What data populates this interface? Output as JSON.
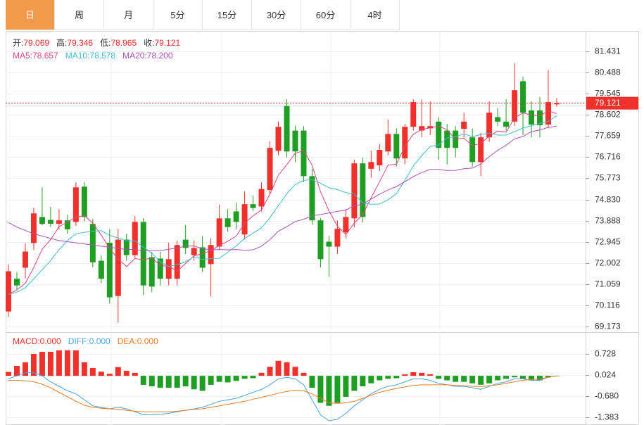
{
  "tabs": [
    "日",
    "周",
    "月",
    "5分",
    "15分",
    "30分",
    "60分",
    "4时"
  ],
  "active_tab": 0,
  "chart_data": {
    "type": "candlestick",
    "up_color": "#f0302a",
    "down_color": "#1e9e22",
    "ohlc_legend": [
      {
        "label": "开:",
        "value": "79.069"
      },
      {
        "label": "高:",
        "value": "79.346"
      },
      {
        "label": "低:",
        "value": "78.965"
      },
      {
        "label": "收:",
        "value": "79.121"
      }
    ],
    "last_price": 79.121,
    "ylim": [
      68.92,
      82.34
    ],
    "yticks": [
      81.431,
      80.488,
      79.545,
      78.602,
      77.659,
      76.716,
      75.773,
      {
        "value": 74.83,
        "label": "74.830"
      },
      73.888,
      72.945,
      72.002,
      71.059,
      70.116,
      69.173
    ],
    "open": [
      69.84,
      71.3,
      71.79,
      72.89,
      74.05,
      73.92,
      73.75,
      73.9,
      73.83,
      75.4,
      73.74,
      72.1,
      72.9,
      70.53,
      73.04,
      72.35,
      73.83,
      72.26,
      72.2,
      71.3,
      71.3,
      73.04,
      72.35,
      72.7,
      71.95,
      72.73,
      73.99,
      74.3,
      73.27,
      74.62,
      74.52,
      75.25,
      77.0,
      79.0,
      77.9,
      77.9,
      75.87,
      73.9,
      72.95,
      72.73,
      73.36,
      73.99,
      76.44,
      76.2,
      76.35,
      76.97,
      77.75,
      76.66,
      78.07,
      77.9,
      78.0,
      78.3,
      77.9,
      77.9,
      77.98,
      77.6,
      76.5,
      77.6,
      78.5,
      78.3,
      78.3,
      80.1,
      78.8,
      78.8,
      78.17,
      79.069
    ],
    "high": [
      71.94,
      71.6,
      72.89,
      74.46,
      75.37,
      74.5,
      74.4,
      74.15,
      75.6,
      75.6,
      73.97,
      72.35,
      73.5,
      73.52,
      73.3,
      74.1,
      74.0,
      72.5,
      72.5,
      72.9,
      73.0,
      73.7,
      73.0,
      73.2,
      73.1,
      74.6,
      74.4,
      74.7,
      75.2,
      75.0,
      75.6,
      77.44,
      78.3,
      79.3,
      78.1,
      78.1,
      76.2,
      74.0,
      73.2,
      73.9,
      74.4,
      76.6,
      76.7,
      77.0,
      77.3,
      78.4,
      78.0,
      78.2,
      79.3,
      79.3,
      79.2,
      78.5,
      78.2,
      78.1,
      78.7,
      78.0,
      77.8,
      79.2,
      78.9,
      79.3,
      80.9,
      80.3,
      79.2,
      79.4,
      80.6,
      79.346
    ],
    "low": [
      69.59,
      70.8,
      71.32,
      72.58,
      73.68,
      73.6,
      73.5,
      73.3,
      73.65,
      73.85,
      71.8,
      71.1,
      70.2,
      69.34,
      72.1,
      72.2,
      70.57,
      70.7,
      71.0,
      71.0,
      71.0,
      72.4,
      72.1,
      71.6,
      70.5,
      72.58,
      73.4,
      73.5,
      73.05,
      74.3,
      74.3,
      75.09,
      76.8,
      76.7,
      76.5,
      75.6,
      73.7,
      71.8,
      71.4,
      72.4,
      73.1,
      73.6,
      73.8,
      75.8,
      76.1,
      76.8,
      76.3,
      76.4,
      77.9,
      77.6,
      77.7,
      76.6,
      76.4,
      76.7,
      77.6,
      76.3,
      75.87,
      77.4,
      78.1,
      77.9,
      78.1,
      77.7,
      77.6,
      77.6,
      78.0,
      78.965
    ],
    "close": [
      71.63,
      71.0,
      72.51,
      74.21,
      73.74,
      73.75,
      73.9,
      73.5,
      75.37,
      74.05,
      72.03,
      71.3,
      70.47,
      73.04,
      72.35,
      73.83,
      71.0,
      70.95,
      71.3,
      72.17,
      72.8,
      72.67,
      72.67,
      71.79,
      72.8,
      73.99,
      73.6,
      73.83,
      74.62,
      74.45,
      75.3,
      77.13,
      78.07,
      76.97,
      76.97,
      75.87,
      73.9,
      72.17,
      72.73,
      73.52,
      74.05,
      76.44,
      74.05,
      76.5,
      77.04,
      77.75,
      76.66,
      78.07,
      79.17,
      78.1,
      78.1,
      77.13,
      77.13,
      77.13,
      78.3,
      76.5,
      77.6,
      78.7,
      78.3,
      78.07,
      79.7,
      78.7,
      78.17,
      78.14,
      79.17,
      79.121
    ],
    "series": [
      {
        "name": "MA5:",
        "value_label": "78.657",
        "color": "#e0457b",
        "values": [
          70.6,
          70.8,
          71.1,
          71.8,
          72.62,
          73.04,
          73.62,
          73.82,
          74.05,
          74.11,
          73.77,
          73.25,
          72.64,
          72.18,
          71.84,
          72.2,
          72.14,
          72.23,
          71.89,
          71.85,
          71.64,
          71.98,
          72.32,
          72.42,
          72.55,
          72.78,
          72.97,
          73.2,
          73.77,
          74.1,
          74.36,
          75.07,
          75.91,
          76.38,
          76.89,
          77.0,
          76.36,
          75.18,
          74.33,
          73.64,
          73.27,
          73.78,
          74.16,
          74.91,
          75.62,
          76.36,
          76.4,
          77.2,
          77.74,
          77.95,
          78.02,
          78.11,
          77.93,
          77.52,
          77.56,
          77.24,
          77.33,
          77.65,
          77.88,
          77.83,
          78.47,
          78.69,
          78.59,
          78.56,
          78.78,
          78.66
        ]
      },
      {
        "name": "MA10:",
        "value_label": "78.578",
        "color": "#3cbfd6",
        "values": [
          70.6,
          70.7,
          70.9,
          71.3,
          71.7,
          72.1,
          72.6,
          73.0,
          73.3,
          73.37,
          73.41,
          73.44,
          73.23,
          73.12,
          72.98,
          72.99,
          72.7,
          72.44,
          72.04,
          71.85,
          71.92,
          72.06,
          72.28,
          72.16,
          72.2,
          72.21,
          72.48,
          72.76,
          73.1,
          73.33,
          73.57,
          74.02,
          74.56,
          75.08,
          75.5,
          75.68,
          75.72,
          75.55,
          75.36,
          75.27,
          75.14,
          75.07,
          74.67,
          74.62,
          74.63,
          74.82,
          75.09,
          75.68,
          76.33,
          76.79,
          77.19,
          77.26,
          77.57,
          77.63,
          77.76,
          77.63,
          77.72,
          77.79,
          77.7,
          77.7,
          77.86,
          78.01,
          78.12,
          78.22,
          78.31,
          78.56
        ]
      },
      {
        "name": "MA20:",
        "value_label": "78.200",
        "color": "#b04fc0",
        "values": [
          73.8,
          73.6,
          73.45,
          73.3,
          73.2,
          73.1,
          73.0,
          72.95,
          72.9,
          72.85,
          72.8,
          72.75,
          72.7,
          72.65,
          72.6,
          72.6,
          72.55,
          72.55,
          72.55,
          72.61,
          72.67,
          72.75,
          72.76,
          72.64,
          72.59,
          72.6,
          72.59,
          72.6,
          72.57,
          72.59,
          72.75,
          73.04,
          73.42,
          73.62,
          73.85,
          73.95,
          74.1,
          74.16,
          74.23,
          74.3,
          74.36,
          74.55,
          74.62,
          74.85,
          75.07,
          75.25,
          75.41,
          75.62,
          75.85,
          76.03,
          76.17,
          76.17,
          76.12,
          76.13,
          76.2,
          76.23,
          76.41,
          76.74,
          77.02,
          77.25,
          77.53,
          77.64,
          77.85,
          77.93,
          78.04,
          78.1
        ]
      }
    ],
    "macd": {
      "ylim": [
        -1.64,
        1.41
      ],
      "yticks": [
        0.728,
        0.024,
        {
          "value": -0.68,
          "label": "-0.680"
        },
        -1.383
      ],
      "series": [
        {
          "name": "MACD:",
          "value_label": "0.000",
          "type": "bar",
          "color": "#f0302a",
          "negative_color": "#1e9e22",
          "values": [
            0.13,
            0.33,
            0.45,
            0.73,
            0.8,
            0.8,
            0.85,
            0.85,
            0.85,
            0.45,
            0.26,
            0.14,
            0.07,
            0.29,
            0.17,
            0.1,
            -0.3,
            -0.35,
            -0.4,
            -0.4,
            -0.4,
            -0.35,
            -0.45,
            -0.5,
            -0.3,
            -0.2,
            -0.22,
            -0.17,
            -0.1,
            -0.08,
            0.1,
            0.3,
            0.5,
            0.45,
            0.3,
            0.1,
            -0.4,
            -0.9,
            -1.0,
            -0.9,
            -0.7,
            -0.5,
            -0.35,
            -0.25,
            -0.15,
            -0.1,
            -0.08,
            0.05,
            0.12,
            0.1,
            0.05,
            -0.1,
            -0.15,
            -0.2,
            -0.2,
            -0.25,
            -0.3,
            -0.25,
            -0.15,
            -0.1,
            -0.05,
            -0.1,
            -0.15,
            -0.15,
            -0.05,
            0.0
          ]
        },
        {
          "name": "DIFF:",
          "value_label": "0.000",
          "type": "line",
          "color": "#4aa3e8",
          "values": [
            -0.1,
            0.0,
            0.1,
            0.1,
            0.0,
            -0.2,
            -0.35,
            -0.5,
            -0.6,
            -0.8,
            -1.0,
            -1.05,
            -1.1,
            -1.05,
            -1.1,
            -1.2,
            -1.3,
            -1.3,
            -1.28,
            -1.25,
            -1.2,
            -1.15,
            -1.1,
            -1.05,
            -0.95,
            -0.85,
            -0.8,
            -0.75,
            -0.65,
            -0.55,
            -0.45,
            -0.3,
            -0.1,
            -0.05,
            -0.1,
            -0.3,
            -0.8,
            -1.3,
            -1.5,
            -1.45,
            -1.25,
            -1.0,
            -0.8,
            -0.6,
            -0.45,
            -0.35,
            -0.3,
            -0.2,
            -0.1,
            -0.1,
            -0.15,
            -0.25,
            -0.3,
            -0.35,
            -0.35,
            -0.4,
            -0.45,
            -0.35,
            -0.25,
            -0.2,
            -0.1,
            -0.1,
            -0.15,
            -0.15,
            -0.05,
            0.0
          ]
        },
        {
          "name": "DEA:",
          "value_label": "0.000",
          "type": "line",
          "color": "#f07a1e",
          "values": [
            -0.15,
            -0.15,
            -0.17,
            -0.2,
            -0.28,
            -0.4,
            -0.55,
            -0.7,
            -0.85,
            -0.98,
            -1.05,
            -1.08,
            -1.1,
            -1.12,
            -1.15,
            -1.18,
            -1.2,
            -1.2,
            -1.2,
            -1.2,
            -1.18,
            -1.15,
            -1.12,
            -1.1,
            -1.05,
            -1.0,
            -0.95,
            -0.9,
            -0.85,
            -0.78,
            -0.72,
            -0.65,
            -0.58,
            -0.52,
            -0.48,
            -0.5,
            -0.6,
            -0.75,
            -0.9,
            -0.92,
            -0.9,
            -0.85,
            -0.75,
            -0.65,
            -0.55,
            -0.48,
            -0.42,
            -0.37,
            -0.32,
            -0.3,
            -0.3,
            -0.3,
            -0.3,
            -0.32,
            -0.33,
            -0.35,
            -0.36,
            -0.33,
            -0.3,
            -0.25,
            -0.2,
            -0.15,
            -0.12,
            -0.1,
            -0.05,
            0.0
          ]
        }
      ]
    }
  }
}
